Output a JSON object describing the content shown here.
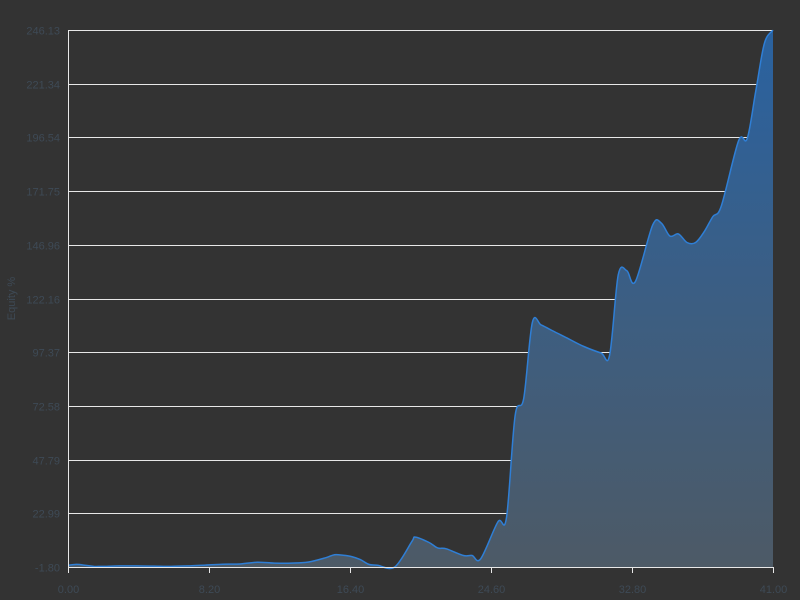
{
  "chart_data": {
    "type": "area",
    "ylabel": "Equity %",
    "xlabel": "",
    "xlim": [
      0,
      41
    ],
    "ylim": [
      -1.8,
      246.13
    ],
    "y_ticks": [
      "-1.80",
      "22.99",
      "47.79",
      "72.58",
      "97.37",
      "122.16",
      "146.96",
      "171.75",
      "196.54",
      "221.34",
      "246.13"
    ],
    "x_ticks": [
      "0.00",
      "8.20",
      "16.40",
      "24.60",
      "32.80",
      "41.00"
    ],
    "grid": true,
    "colors": {
      "background": "#333333",
      "line": "#2f7fd6",
      "fill_top": "#2a62a0",
      "fill_bottom": "#4d5a66",
      "grid": "#e8e8e8",
      "text": "#3e4a56"
    },
    "series": [
      {
        "x": [
          0,
          0.5,
          1,
          1.5,
          2,
          3,
          4,
          5,
          6,
          7,
          8,
          9,
          10,
          11,
          12,
          13,
          14,
          15,
          15.5,
          16,
          16.5,
          17,
          17.5,
          18,
          19,
          20,
          20.2,
          21,
          21.5,
          22,
          23,
          23.5,
          24,
          25,
          25.5,
          26,
          26.5,
          27,
          27.5,
          28,
          28.5,
          29,
          30,
          31,
          31.5,
          32,
          32.5,
          33,
          34,
          34.5,
          35,
          35.5,
          36,
          36.5,
          37,
          37.5,
          38,
          39,
          39.5,
          40,
          40.5,
          41
        ],
        "y": [
          -1.0,
          -0.6,
          -1.0,
          -1.5,
          -1.5,
          -1.3,
          -1.3,
          -1.4,
          -1.5,
          -1.3,
          -0.9,
          -0.5,
          -0.4,
          0.4,
          0.0,
          0.0,
          0.5,
          2.5,
          3.9,
          3.6,
          3.0,
          1.6,
          -0.6,
          -1.0,
          -1.8,
          10.0,
          12.0,
          9.5,
          7.0,
          6.6,
          3.5,
          3.5,
          2.0,
          19.0,
          21.0,
          68.0,
          76.0,
          111.0,
          110.0,
          108.0,
          106.0,
          104.0,
          100.0,
          97.0,
          96.0,
          133.0,
          135.0,
          130.0,
          156.0,
          157.0,
          151.0,
          152.0,
          148.0,
          148.0,
          153.0,
          160.0,
          165.0,
          195.0,
          196.0,
          218.0,
          240.0,
          246.1
        ]
      }
    ]
  }
}
